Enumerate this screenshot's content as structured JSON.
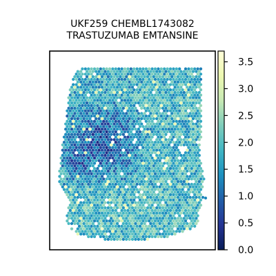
{
  "chart_data": {
    "type": "heatmap",
    "subtype": "spatial-hexagonal-spot-map",
    "title_lines": [
      "UKF259 CHEMBL1743082",
      "TRASTUZUMAB EMTANSINE"
    ],
    "xlabel": "",
    "ylabel": "",
    "axes_ticks": false,
    "grid": false,
    "colormap": "YlGnBu",
    "colorbar": {
      "placement": "right",
      "vmin": 0.0,
      "vmax": 3.7,
      "ticks": [
        0.0,
        0.5,
        1.0,
        1.5,
        2.0,
        2.5,
        3.0,
        3.5
      ],
      "tick_labels": [
        "0.0",
        "0.5",
        "1.0",
        "1.5",
        "2.0",
        "2.5",
        "3.0",
        "3.5"
      ]
    },
    "value_summary": {
      "typical_range": [
        0.8,
        2.6
      ],
      "low_region": "upper-left / left-center of tissue (~0.5–1.2)",
      "high_spots": "scattered, up to ~3.5"
    },
    "colors": {
      "cmap_stops": [
        "#081d58",
        "#253494",
        "#225ea8",
        "#1d91c0",
        "#41b6c4",
        "#7fcdbb",
        "#c7e9b4",
        "#edf8b1",
        "#ffffd9"
      ]
    }
  }
}
